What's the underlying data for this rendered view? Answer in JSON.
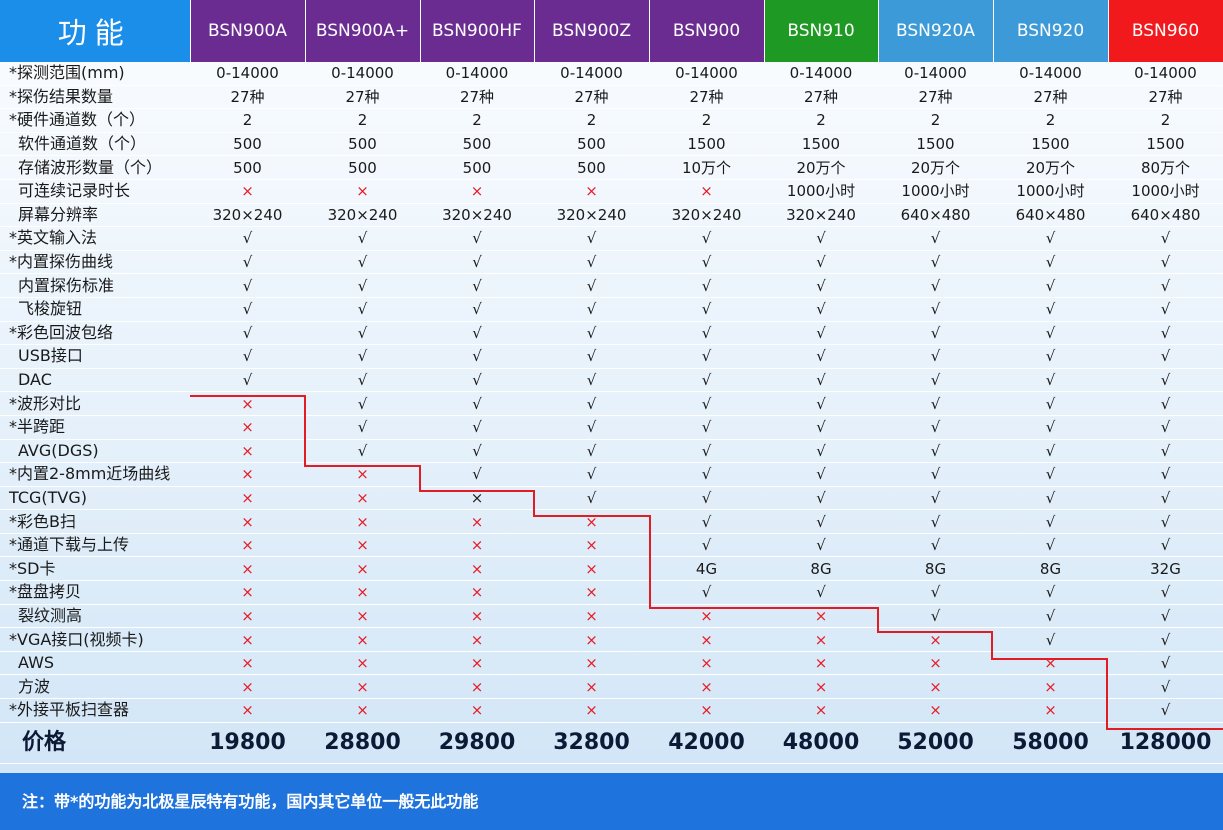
{
  "header": {
    "feature": "功能",
    "models": [
      {
        "name": "BSN900A",
        "color": "#6b2c91"
      },
      {
        "name": "BSN900A+",
        "color": "#6b2c91"
      },
      {
        "name": "BSN900HF",
        "color": "#6b2c91"
      },
      {
        "name": "BSN900Z",
        "color": "#6b2c91"
      },
      {
        "name": "BSN900",
        "color": "#6b2c91"
      },
      {
        "name": "BSN910",
        "color": "#1e9a24"
      },
      {
        "name": "BSN920A",
        "color": "#3d9ad8"
      },
      {
        "name": "BSN920",
        "color": "#3d9ad8"
      },
      {
        "name": "BSN960",
        "color": "#f2191d"
      }
    ]
  },
  "rows": [
    {
      "name": "*探测范围(mm)",
      "indent": false,
      "values": [
        "0-14000",
        "0-14000",
        "0-14000",
        "0-14000",
        "0-14000",
        "0-14000",
        "0-14000",
        "0-14000",
        "0-14000"
      ]
    },
    {
      "name": "*探伤结果数量",
      "indent": false,
      "values": [
        "27种",
        "27种",
        "27种",
        "27种",
        "27种",
        "27种",
        "27种",
        "27种",
        "27种"
      ]
    },
    {
      "name": "*硬件通道数（个）",
      "indent": false,
      "values": [
        "2",
        "2",
        "2",
        "2",
        "2",
        "2",
        "2",
        "2",
        "2"
      ]
    },
    {
      "name": "软件通道数（个）",
      "indent": true,
      "values": [
        "500",
        "500",
        "500",
        "500",
        "1500",
        "1500",
        "1500",
        "1500",
        "1500"
      ]
    },
    {
      "name": "存储波形数量（个）",
      "indent": true,
      "values": [
        "500",
        "500",
        "500",
        "500",
        "10万个",
        "20万个",
        "20万个",
        "20万个",
        "80万个"
      ]
    },
    {
      "name": "可连续记录时长",
      "indent": true,
      "values": [
        "×",
        "×",
        "×",
        "×",
        "×",
        "1000小时",
        "1000小时",
        "1000小时",
        "1000小时"
      ]
    },
    {
      "name": "屏幕分辨率",
      "indent": true,
      "values": [
        "320×240",
        "320×240",
        "320×240",
        "320×240",
        "320×240",
        "320×240",
        "640×480",
        "640×480",
        "640×480"
      ]
    },
    {
      "name": "*英文输入法",
      "indent": false,
      "values": [
        "√",
        "√",
        "√",
        "√",
        "√",
        "√",
        "√",
        "√",
        "√"
      ]
    },
    {
      "name": "*内置探伤曲线",
      "indent": false,
      "values": [
        "√",
        "√",
        "√",
        "√",
        "√",
        "√",
        "√",
        "√",
        "√"
      ]
    },
    {
      "name": "内置探伤标准",
      "indent": true,
      "values": [
        "√",
        "√",
        "√",
        "√",
        "√",
        "√",
        "√",
        "√",
        "√"
      ]
    },
    {
      "name": "飞梭旋钮",
      "indent": true,
      "values": [
        "√",
        "√",
        "√",
        "√",
        "√",
        "√",
        "√",
        "√",
        "√"
      ]
    },
    {
      "name": "*彩色回波包络",
      "indent": false,
      "values": [
        "√",
        "√",
        "√",
        "√",
        "√",
        "√",
        "√",
        "√",
        "√"
      ]
    },
    {
      "name": "USB接口",
      "indent": true,
      "values": [
        "√",
        "√",
        "√",
        "√",
        "√",
        "√",
        "√",
        "√",
        "√"
      ]
    },
    {
      "name": "DAC",
      "indent": true,
      "values": [
        "√",
        "√",
        "√",
        "√",
        "√",
        "√",
        "√",
        "√",
        "√"
      ]
    },
    {
      "name": "*波形对比",
      "indent": false,
      "values": [
        "×",
        "√",
        "√",
        "√",
        "√",
        "√",
        "√",
        "√",
        "√"
      ]
    },
    {
      "name": "*半跨距",
      "indent": false,
      "values": [
        "×",
        "√",
        "√",
        "√",
        "√",
        "√",
        "√",
        "√",
        "√"
      ]
    },
    {
      "name": "AVG(DGS)",
      "indent": true,
      "values": [
        "×",
        "√",
        "√",
        "√",
        "√",
        "√",
        "√",
        "√",
        "√"
      ]
    },
    {
      "name": "*内置2-8mm近场曲线",
      "indent": false,
      "values": [
        "×",
        "×",
        "√",
        "√",
        "√",
        "√",
        "√",
        "√",
        "√"
      ]
    },
    {
      "name": "TCG(TVG)",
      "indent": false,
      "values": [
        "×",
        "×",
        "×",
        "√",
        "√",
        "√",
        "√",
        "√",
        "√"
      ]
    },
    {
      "name": "*彩色B扫",
      "indent": false,
      "values": [
        "×",
        "×",
        "×",
        "×",
        "√",
        "√",
        "√",
        "√",
        "√"
      ]
    },
    {
      "name": "*通道下载与上传",
      "indent": false,
      "values": [
        "×",
        "×",
        "×",
        "×",
        "√",
        "√",
        "√",
        "√",
        "√"
      ]
    },
    {
      "name": "*SD卡",
      "indent": false,
      "values": [
        "×",
        "×",
        "×",
        "×",
        "4G",
        "8G",
        "8G",
        "8G",
        "32G"
      ]
    },
    {
      "name": "*盘盘拷贝",
      "indent": false,
      "values": [
        "×",
        "×",
        "×",
        "×",
        "√",
        "√",
        "√",
        "√",
        "√"
      ]
    },
    {
      "name": "裂纹测高",
      "indent": true,
      "values": [
        "×",
        "×",
        "×",
        "×",
        "×",
        "×",
        "√",
        "√",
        "√"
      ]
    },
    {
      "name": "*VGA接口(视频卡)",
      "indent": false,
      "values": [
        "×",
        "×",
        "×",
        "×",
        "×",
        "×",
        "×",
        "√",
        "√"
      ]
    },
    {
      "name": "AWS",
      "indent": true,
      "values": [
        "×",
        "×",
        "×",
        "×",
        "×",
        "×",
        "×",
        "×",
        "√"
      ]
    },
    {
      "name": "方波",
      "indent": true,
      "values": [
        "×",
        "×",
        "×",
        "×",
        "×",
        "×",
        "×",
        "×",
        "√"
      ]
    },
    {
      "name": "*外接平板扫查器",
      "indent": false,
      "values": [
        "×",
        "×",
        "×",
        "×",
        "×",
        "×",
        "×",
        "×",
        "√"
      ]
    }
  ],
  "price": {
    "label": "价格",
    "values": [
      "19800",
      "28800",
      "29800",
      "32800",
      "42000",
      "48000",
      "52000",
      "58000",
      "128000"
    ]
  },
  "note": "注：带*的功能为北极星辰特有功能，国内其它单位一般无此功能",
  "colors": {
    "cross": "#e81b24",
    "step_line": "#e21c23",
    "note_bg": "#1f73dc",
    "feature_header": "#1a8ee8"
  }
}
